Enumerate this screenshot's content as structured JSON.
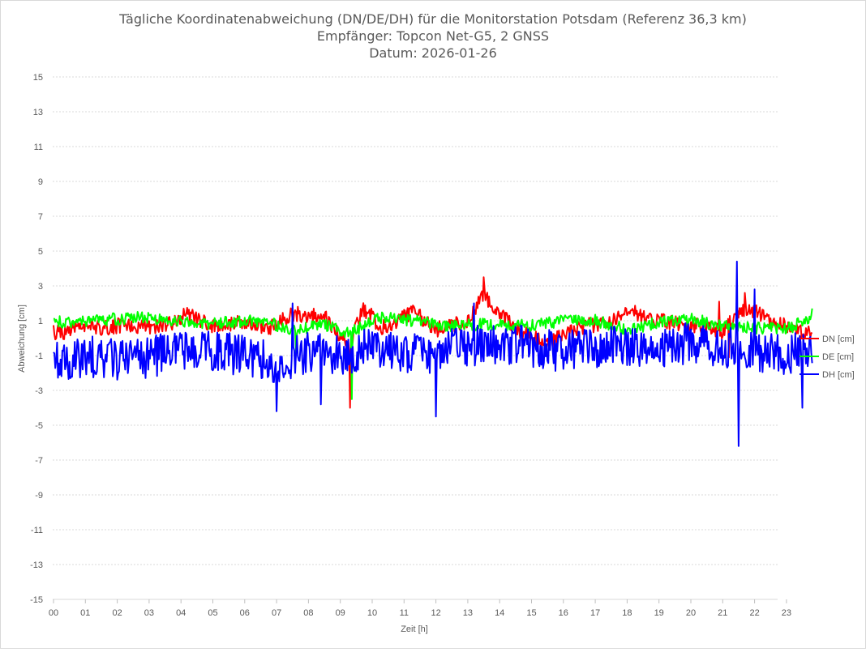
{
  "chart_data": {
    "type": "line",
    "title_lines": [
      "Tägliche Koordinatenabweichung (DN/DE/DH) für die Monitorstation Potsdam (Referenz 36,3 km)",
      "Empfänger: Topcon Net-G5, 2 GNSS",
      "Datum: 2026-01-26"
    ],
    "xlabel": "Zeit [h]",
    "ylabel": "Abweichung [cm]",
    "ylim": [
      -15,
      15
    ],
    "yticks": [
      15,
      13,
      11,
      9,
      7,
      5,
      3,
      1,
      -1,
      -3,
      -5,
      -7,
      -9,
      -11,
      -13,
      -15
    ],
    "xlim": [
      0,
      24
    ],
    "xtick_labels": [
      "00",
      "01",
      "02",
      "03",
      "04",
      "05",
      "06",
      "07",
      "08",
      "09",
      "10",
      "11",
      "12",
      "13",
      "14",
      "15",
      "16",
      "17",
      "18",
      "19",
      "20",
      "21",
      "22",
      "23"
    ],
    "grid": true,
    "legend_position": "right",
    "series": [
      {
        "name": "DN [cm]",
        "color": "#ff0000",
        "control_points": [
          [
            0,
            0.3
          ],
          [
            2,
            0.7
          ],
          [
            3.5,
            0.7
          ],
          [
            4.2,
            1.4
          ],
          [
            5,
            0.6
          ],
          [
            6,
            1.0
          ],
          [
            6.8,
            0.6
          ],
          [
            7.5,
            1.4
          ],
          [
            8.5,
            1.2
          ],
          [
            9.3,
            -0.5
          ],
          [
            9.7,
            1.8
          ],
          [
            10.3,
            0.6
          ],
          [
            11.3,
            1.5
          ],
          [
            12,
            0.5
          ],
          [
            13,
            1.0
          ],
          [
            13.5,
            2.5
          ],
          [
            14.5,
            0.5
          ],
          [
            15.5,
            -0.3
          ],
          [
            16.5,
            0.6
          ],
          [
            17.5,
            1.0
          ],
          [
            18.2,
            1.5
          ],
          [
            19,
            1.0
          ],
          [
            20,
            0.8
          ],
          [
            21,
            0.3
          ],
          [
            21.5,
            1.5
          ],
          [
            22,
            1.5
          ],
          [
            23,
            0.7
          ],
          [
            23.8,
            0.2
          ]
        ],
        "noise_amplitude": 0.45,
        "spikes": [
          [
            9.3,
            -4.0
          ],
          [
            13.5,
            3.5
          ],
          [
            21.2,
            -1.1
          ],
          [
            21.7,
            2.6
          ],
          [
            20.9,
            2.1
          ]
        ]
      },
      {
        "name": "DE [cm]",
        "color": "#00ff00",
        "control_points": [
          [
            0,
            0.9
          ],
          [
            2,
            1.1
          ],
          [
            3,
            1.2
          ],
          [
            4.5,
            0.8
          ],
          [
            5.5,
            0.9
          ],
          [
            6.5,
            1.0
          ],
          [
            7.5,
            0.5
          ],
          [
            8.5,
            0.8
          ],
          [
            9.3,
            0.3
          ],
          [
            10.3,
            1.2
          ],
          [
            11.3,
            1.0
          ],
          [
            12.5,
            0.7
          ],
          [
            13.5,
            0.8
          ],
          [
            15,
            0.7
          ],
          [
            16,
            1.0
          ],
          [
            17,
            1.0
          ],
          [
            18,
            0.5
          ],
          [
            19,
            0.9
          ],
          [
            20,
            1.1
          ],
          [
            21,
            0.7
          ],
          [
            22,
            0.6
          ],
          [
            23,
            0.5
          ],
          [
            23.8,
            1.2
          ]
        ],
        "noise_amplitude": 0.35,
        "spikes": [
          [
            9.35,
            -3.5
          ],
          [
            7.6,
            -0.9
          ],
          [
            23.8,
            1.7
          ]
        ]
      },
      {
        "name": "DH [cm]",
        "color": "#0000ff",
        "control_points": [
          [
            0,
            -1.5
          ],
          [
            1,
            -1.0
          ],
          [
            2,
            -1.3
          ],
          [
            3,
            -1.1
          ],
          [
            4,
            -0.6
          ],
          [
            5,
            -0.7
          ],
          [
            6,
            -1.0
          ],
          [
            7,
            -1.5
          ],
          [
            8,
            -0.8
          ],
          [
            9,
            -1.0
          ],
          [
            10,
            -0.5
          ],
          [
            11,
            -1.0
          ],
          [
            12,
            -0.8
          ],
          [
            13,
            -0.5
          ],
          [
            14,
            -0.3
          ],
          [
            15,
            -0.5
          ],
          [
            16,
            -0.8
          ],
          [
            17,
            -0.5
          ],
          [
            18,
            -0.5
          ],
          [
            19,
            -0.5
          ],
          [
            20,
            -0.3
          ],
          [
            21,
            -0.5
          ],
          [
            22,
            -0.8
          ],
          [
            23,
            -1.0
          ],
          [
            23.8,
            -0.3
          ]
        ],
        "noise_amplitude": 1.2,
        "spikes": [
          [
            21.45,
            4.4
          ],
          [
            21.5,
            -6.2
          ],
          [
            7.0,
            -4.2
          ],
          [
            12.0,
            -4.5
          ],
          [
            23.5,
            -4.0
          ],
          [
            22.0,
            2.8
          ],
          [
            7.5,
            2.0
          ],
          [
            13.2,
            2.0
          ],
          [
            8.4,
            -3.8
          ]
        ]
      }
    ],
    "samples_per_hour": 36
  }
}
